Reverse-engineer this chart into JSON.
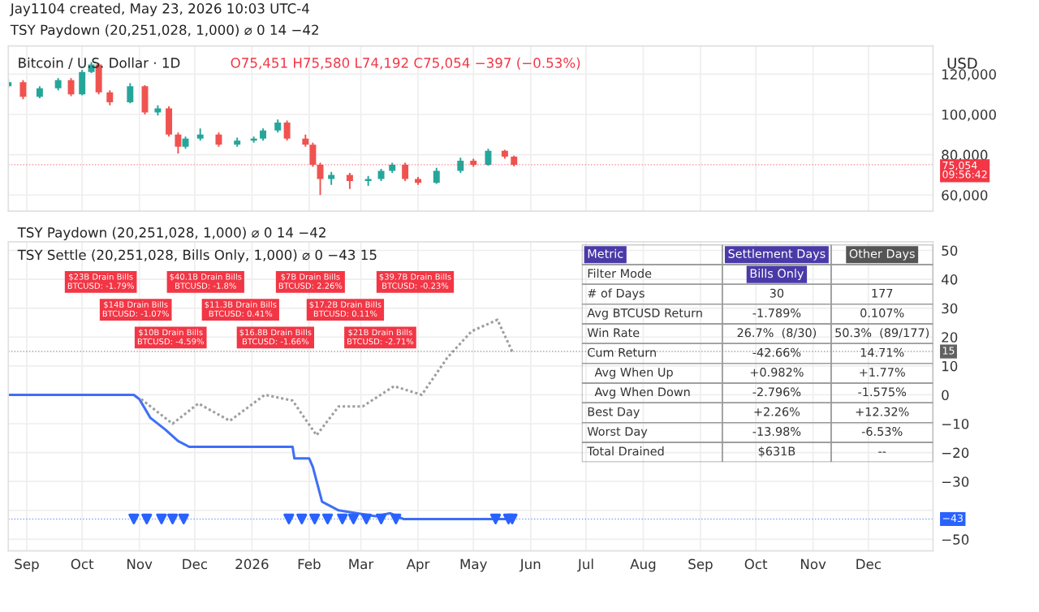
{
  "chart_data": [
    {
      "type": "candlestick",
      "title": "Bitcoin / U.S. Dollar · 1D",
      "subtitle": "O75,451 H75,580 L74,192 C75,054 −397 (−0.53%)",
      "ylabel": "USD",
      "annotations": [
        "Jay1104 created, May 23, 2026 10:03 UTC-4",
        "TSY Paydown (20,251,028, 1,000) ⌀ 0 14 −42"
      ],
      "x": [
        "2025-08-22",
        "2025-08-30",
        "2025-09-08",
        "2025-09-18",
        "2025-09-25",
        "2025-10-01",
        "2025-10-06",
        "2025-10-10",
        "2025-10-16",
        "2025-10-27",
        "2025-11-04",
        "2025-11-11",
        "2025-11-17",
        "2025-11-22",
        "2025-11-26",
        "2025-12-04",
        "2025-12-14",
        "2025-12-24",
        "2026-01-02",
        "2026-01-07",
        "2026-01-15",
        "2026-01-20",
        "2026-01-30",
        "2026-02-03",
        "2026-02-07",
        "2026-02-13",
        "2026-02-23",
        "2026-03-05",
        "2026-03-12",
        "2026-03-18",
        "2026-03-25",
        "2026-04-01",
        "2026-04-11",
        "2026-04-24",
        "2026-05-01",
        "2026-05-09",
        "2026-05-18",
        "2026-05-23"
      ],
      "ohlc": [
        [
          114000,
          117500,
          113000,
          116000
        ],
        [
          116000,
          117000,
          107500,
          108700
        ],
        [
          108700,
          114000,
          108000,
          113000
        ],
        [
          113000,
          118000,
          112000,
          117000
        ],
        [
          117000,
          118000,
          109000,
          110000
        ],
        [
          110000,
          122000,
          109500,
          121000
        ],
        [
          121000,
          126000,
          120500,
          124800
        ],
        [
          124800,
          125500,
          110000,
          111000
        ],
        [
          111000,
          112000,
          104500,
          106000
        ],
        [
          106000,
          115500,
          105500,
          114000
        ],
        [
          114000,
          114500,
          100000,
          101000
        ],
        [
          101000,
          104500,
          99500,
          103000
        ],
        [
          103000,
          104000,
          89000,
          90000
        ],
        [
          90000,
          91000,
          80500,
          84000
        ],
        [
          84000,
          89000,
          83000,
          88000
        ],
        [
          88000,
          93000,
          87000,
          90000
        ],
        [
          90000,
          91000,
          84000,
          85000
        ],
        [
          85000,
          88500,
          84000,
          87000
        ],
        [
          87000,
          89000,
          86000,
          88000
        ],
        [
          88000,
          93000,
          87000,
          92000
        ],
        [
          92000,
          97500,
          91000,
          96000
        ],
        [
          96000,
          97000,
          87000,
          88000
        ],
        [
          88000,
          90000,
          84000,
          85000
        ],
        [
          85000,
          86000,
          74000,
          75000
        ],
        [
          75000,
          76000,
          60000,
          68000
        ],
        [
          68000,
          71500,
          65000,
          70000
        ],
        [
          70000,
          71000,
          63000,
          67000
        ],
        [
          67000,
          69500,
          64500,
          68000
        ],
        [
          68000,
          73000,
          67000,
          72000
        ],
        [
          72000,
          76000,
          71000,
          75000
        ],
        [
          75000,
          76000,
          67000,
          68000
        ],
        [
          68000,
          69000,
          65000,
          66000
        ],
        [
          66000,
          73500,
          65500,
          72000
        ],
        [
          72000,
          78500,
          71000,
          77000
        ],
        [
          77000,
          78000,
          74000,
          75000
        ],
        [
          75000,
          83000,
          74500,
          82000
        ],
        [
          82000,
          82500,
          78000,
          79000
        ],
        [
          79000,
          79500,
          74192,
          75054
        ]
      ],
      "xlim": [
        "2025-08-22",
        "2027-01-05"
      ],
      "xticks": [
        {
          "value": "2025-09-01",
          "label": null
        },
        {
          "value": "2025-10-01",
          "label": null
        },
        {
          "value": "2025-11-01",
          "label": null
        },
        {
          "value": "2025-12-01",
          "label": null
        },
        {
          "value": "2026-01-01",
          "label": null
        },
        {
          "value": "2026-02-01",
          "label": null
        },
        {
          "value": "2026-03-01",
          "label": null
        },
        {
          "value": "2026-04-01",
          "label": null
        },
        {
          "value": "2026-05-01",
          "label": null
        },
        {
          "value": "2026-06-01",
          "label": null
        },
        {
          "value": "2026-07-01",
          "label": null
        },
        {
          "value": "2026-08-01",
          "label": null
        },
        {
          "value": "2026-09-01",
          "label": null
        },
        {
          "value": "2026-10-01",
          "label": null
        },
        {
          "value": "2026-11-01",
          "label": null
        },
        {
          "value": "2026-12-01",
          "label": null
        }
      ],
      "ylim": [
        52000,
        134000
      ],
      "yticks": [
        {
          "value": 60000,
          "label": "60,000"
        },
        {
          "value": 80000,
          "label": "80,000"
        },
        {
          "value": 100000,
          "label": "100,000"
        },
        {
          "value": 120000,
          "label": "120,000"
        }
      ],
      "tick_labels": "y",
      "grid": true,
      "ref_lines": [
        {
          "axis": "y",
          "value": 75054,
          "label": "75,054\n09:56:42",
          "color": "#f23645",
          "line_style": "dotted"
        }
      ]
    },
    {
      "type": "line",
      "title": "TSY Settle (20,251,028, Bills Only, 1,000) ⌀ 0 −43 15",
      "annotations": [
        "TSY Paydown (20,251,028, 1,000) ⌀ 0 14 −42",
        "$23B Drain Bills\nBTCUSD: -1.79%",
        "$14B Drain Bills\nBTCUSD: -1.07%",
        "$10B Drain Bills\nBTCUSD: -4.59%",
        "$40.1B Drain Bills\nBTCUSD: -1.8%",
        "$11.3B Drain Bills\nBTCUSD: 0.41%",
        "$16.8B Drain Bills\nBTCUSD: -1.66%",
        "$7B Drain Bills\nBTCUSD: 2.26%",
        "$17.2B Drain Bills\nBTCUSD: 0.11%",
        "$21B Drain Bills\nBTCUSD: -2.71%",
        "$39.7B Drain Bills\nBTCUSD: -0.23%"
      ],
      "series": [
        {
          "type": "line",
          "color": "#3f6ff5",
          "line_style": "solid",
          "x": [
            "2025-08-22",
            "2025-10-29",
            "2025-11-01",
            "2025-11-07",
            "2025-11-15",
            "2025-11-22",
            "2025-11-28",
            "2026-01-23",
            "2026-01-24",
            "2026-02-01",
            "2026-02-03",
            "2026-02-08",
            "2026-02-17",
            "2026-03-09",
            "2026-03-17",
            "2026-03-24",
            "2026-05-22"
          ],
          "values": [
            0,
            0,
            -1.5,
            -8,
            -12,
            -16,
            -18,
            -18,
            -22,
            -22,
            -25,
            -37,
            -40,
            -42,
            -41,
            -43,
            -43
          ]
        },
        {
          "type": "line",
          "color": "#9e9e9e",
          "line_style": "dotted",
          "x": [
            "2025-11-02",
            "2025-11-19",
            "2025-12-03",
            "2025-12-20",
            "2026-01-08",
            "2026-01-23",
            "2026-02-05",
            "2026-02-17",
            "2026-03-02",
            "2026-03-19",
            "2026-04-03",
            "2026-04-17",
            "2026-04-30",
            "2026-05-14",
            "2026-05-22"
          ],
          "values": [
            -1.5,
            -10,
            -3,
            -9,
            0,
            -2,
            -14,
            -4,
            -4,
            3,
            0,
            13,
            22,
            26,
            15
          ]
        },
        {
          "type": "scatter",
          "color": "#2962ff",
          "marker": "triangle",
          "x": [
            "2025-10-29",
            "2025-11-05",
            "2025-11-13",
            "2025-11-19",
            "2025-11-25",
            "2026-01-21",
            "2026-01-28",
            "2026-02-04",
            "2026-02-11",
            "2026-02-19",
            "2026-02-25",
            "2026-03-04",
            "2026-03-12",
            "2026-03-20",
            "2026-05-13",
            "2026-05-20",
            "2026-05-22"
          ],
          "values": [
            -43,
            -43,
            -43,
            -43,
            -43,
            -43,
            -43,
            -43,
            -43,
            -43,
            -43,
            -43,
            -43,
            -43,
            -43,
            -43,
            -43
          ]
        }
      ],
      "xlim": [
        "2025-08-22",
        "2027-01-05"
      ],
      "xticks": [
        {
          "value": "2025-09-01",
          "label": "Sep"
        },
        {
          "value": "2025-10-01",
          "label": "Oct"
        },
        {
          "value": "2025-11-01",
          "label": "Nov"
        },
        {
          "value": "2025-12-01",
          "label": "Dec"
        },
        {
          "value": "2026-01-01",
          "label": "2026"
        },
        {
          "value": "2026-02-01",
          "label": "Feb"
        },
        {
          "value": "2026-03-01",
          "label": "Mar"
        },
        {
          "value": "2026-04-01",
          "label": "Apr"
        },
        {
          "value": "2026-05-01",
          "label": "May"
        },
        {
          "value": "2026-06-01",
          "label": "Jun"
        },
        {
          "value": "2026-07-01",
          "label": "Jul"
        },
        {
          "value": "2026-08-01",
          "label": "Aug"
        },
        {
          "value": "2026-09-01",
          "label": "Sep"
        },
        {
          "value": "2026-10-01",
          "label": "Oct"
        },
        {
          "value": "2026-11-01",
          "label": "Nov"
        },
        {
          "value": "2026-12-01",
          "label": "Dec"
        }
      ],
      "ylim": [
        -54,
        53
      ],
      "yticks": [
        -50,
        {
          "value": -40,
          "label": null
        },
        -30,
        -20,
        -10,
        0,
        10,
        20,
        30,
        40,
        50
      ],
      "grid": true,
      "ref_lines": [
        {
          "axis": "y",
          "value": -43,
          "label": "−43",
          "color": "#2962ff",
          "line_style": "dotted"
        },
        {
          "axis": "y",
          "value": 15,
          "label": "15",
          "color": "#616161",
          "line_style": "dotted"
        }
      ]
    },
    {
      "type": "other",
      "annotations": [
        "Metric",
        "Settlement Days",
        "Other Days",
        "Filter Mode",
        "Bills Only",
        null,
        "# of Days",
        "30",
        "177",
        "Avg BTCUSD Return",
        "-1.789%",
        "0.107%",
        "Win Rate",
        "26.7%  (8/30)",
        "50.3%  (89/177)",
        "Cum Return",
        "-42.66%",
        "14.71%",
        "  Avg When Up",
        "+0.982%",
        "+1.77%",
        "  Avg When Down",
        "-2.796%",
        "-1.575%",
        "Best Day",
        "+2.26%",
        "+12.32%",
        "Worst Day",
        "-13.98%",
        "-6.53%",
        "Total Drained",
        "$631B",
        "--"
      ]
    }
  ]
}
